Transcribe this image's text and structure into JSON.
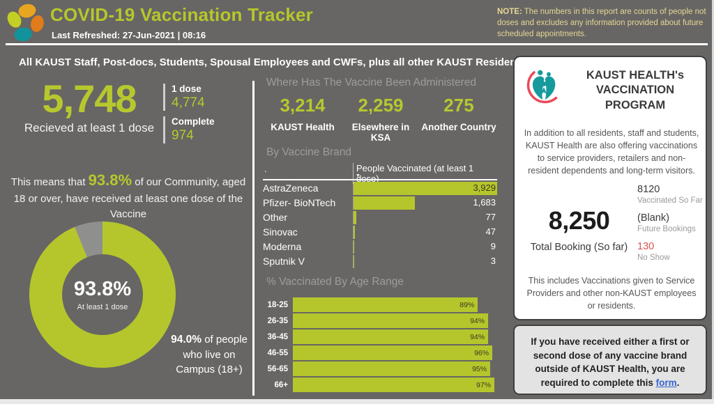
{
  "header": {
    "title": "COVID-19 Vaccination Tracker",
    "last_refreshed_label": "Last Refreshed:",
    "last_refreshed_value": "27-Jun-2021 | 08:16",
    "note_label": "NOTE:",
    "note_text": " The numbers in this report are counts of people not doses and excludes any information provided about future scheduled appointments."
  },
  "subtitle": "All KAUST Staff, Post-docs, Students, Spousal Employees and CWFs, plus all other KAUST Residents",
  "left": {
    "total_value": "5,748",
    "total_label": "Recieved at least 1 dose",
    "dose_cards": [
      {
        "label": "1 dose",
        "value": "4,774"
      },
      {
        "label": "Complete",
        "value": "974"
      }
    ],
    "sentence_pre": "This means that ",
    "sentence_pct": "93.8%",
    "sentence_post": " of our Community, aged 18 or over, have received at least one dose of the Vaccine",
    "donut_center_pct": "93.8%",
    "donut_center_label": "At least 1 dose",
    "campus_pct": "94.0%",
    "campus_rest": " of people who live on Campus (18+)"
  },
  "mid": {
    "administered": {
      "title": "Where Has The Vaccine Been Administered",
      "stats": [
        {
          "value": "3,214",
          "label": "KAUST Health"
        },
        {
          "value": "2,259",
          "label": "Elsewhere in KSA"
        },
        {
          "value": "275",
          "label": "Another Country"
        }
      ]
    },
    "brand": {
      "title": "By Vaccine Brand",
      "col1_header": ".",
      "col2_header": "People Vaccinated (at least 1 dose)",
      "sort_icon": "▼",
      "rows": [
        {
          "label": "AstraZeneca",
          "value": "3,929"
        },
        {
          "label": "Pfizer- BioNTech",
          "value": "1,683"
        },
        {
          "label": "Other",
          "value": "77"
        },
        {
          "label": "Sinovac",
          "value": "47"
        },
        {
          "label": "Moderna",
          "value": "9"
        },
        {
          "label": "Sputnik V",
          "value": "3"
        }
      ]
    },
    "age": {
      "title": "% Vaccinated By Age Range",
      "rows": [
        {
          "label": "18-25",
          "value": "89%"
        },
        {
          "label": "26-35",
          "value": "94%"
        },
        {
          "label": "36-45",
          "value": "94%"
        },
        {
          "label": "46-55",
          "value": "96%"
        },
        {
          "label": "56-65",
          "value": "95%"
        },
        {
          "label": "66+",
          "value": "97%"
        }
      ]
    }
  },
  "right_panel": {
    "title": "KAUST HEALTH's VACCINATION PROGRAM",
    "intro": "In addition to all residents, staff and students, KAUST Health are also offering vaccinations to service providers, retailers and non-resident dependents and long-term visitors.",
    "total_value": "8,250",
    "total_label": "Total Booking (So far)",
    "side_stats": [
      {
        "value": "8120",
        "label": "Vaccinated So Far",
        "color": "#3a3a3a"
      },
      {
        "value": "(Blank)",
        "label": "Future Bookings",
        "color": "#3a3a3a"
      },
      {
        "value": "130",
        "label": "No Show",
        "color": "#d9534f"
      }
    ],
    "footnote": "This includes Vaccinations given to Service Providers and other non-KAUST employees or residents.",
    "outside_pre": "If you have received either a first or second dose of any vaccine brand outside of KAUST Health, you are required to complete this ",
    "outside_link": "form",
    "outside_post": "."
  },
  "colors": {
    "accent_green": "#b7c82e",
    "background_gray": "#676664",
    "note_tan": "#e6d794",
    "no_show_red": "#d9534f",
    "link_blue": "#3565d0",
    "health_teal": "#179a9d"
  },
  "chart_data": [
    {
      "type": "pie",
      "title": "At least 1 dose",
      "labels": [
        "At least 1 dose",
        "Remainder"
      ],
      "values": [
        93.8,
        6.2
      ],
      "center_label": "93.8%",
      "colors": [
        "#b5c62c",
        "#8f8f8d"
      ]
    },
    {
      "type": "bar",
      "orientation": "horizontal",
      "title": "By Vaccine Brand",
      "series_label": "People Vaccinated (at least 1 dose)",
      "categories": [
        "AstraZeneca",
        "Pfizer- BioNTech",
        "Other",
        "Sinovac",
        "Moderna",
        "Sputnik V"
      ],
      "values": [
        3929,
        1683,
        77,
        47,
        9,
        3
      ],
      "xlim": [
        0,
        3929
      ]
    },
    {
      "type": "bar",
      "orientation": "horizontal",
      "title": "% Vaccinated By Age Range",
      "categories": [
        "18-25",
        "26-35",
        "36-45",
        "46-55",
        "56-65",
        "66+"
      ],
      "values": [
        89,
        94,
        94,
        96,
        95,
        97
      ],
      "unit": "%",
      "xlim": [
        0,
        100
      ]
    }
  ]
}
